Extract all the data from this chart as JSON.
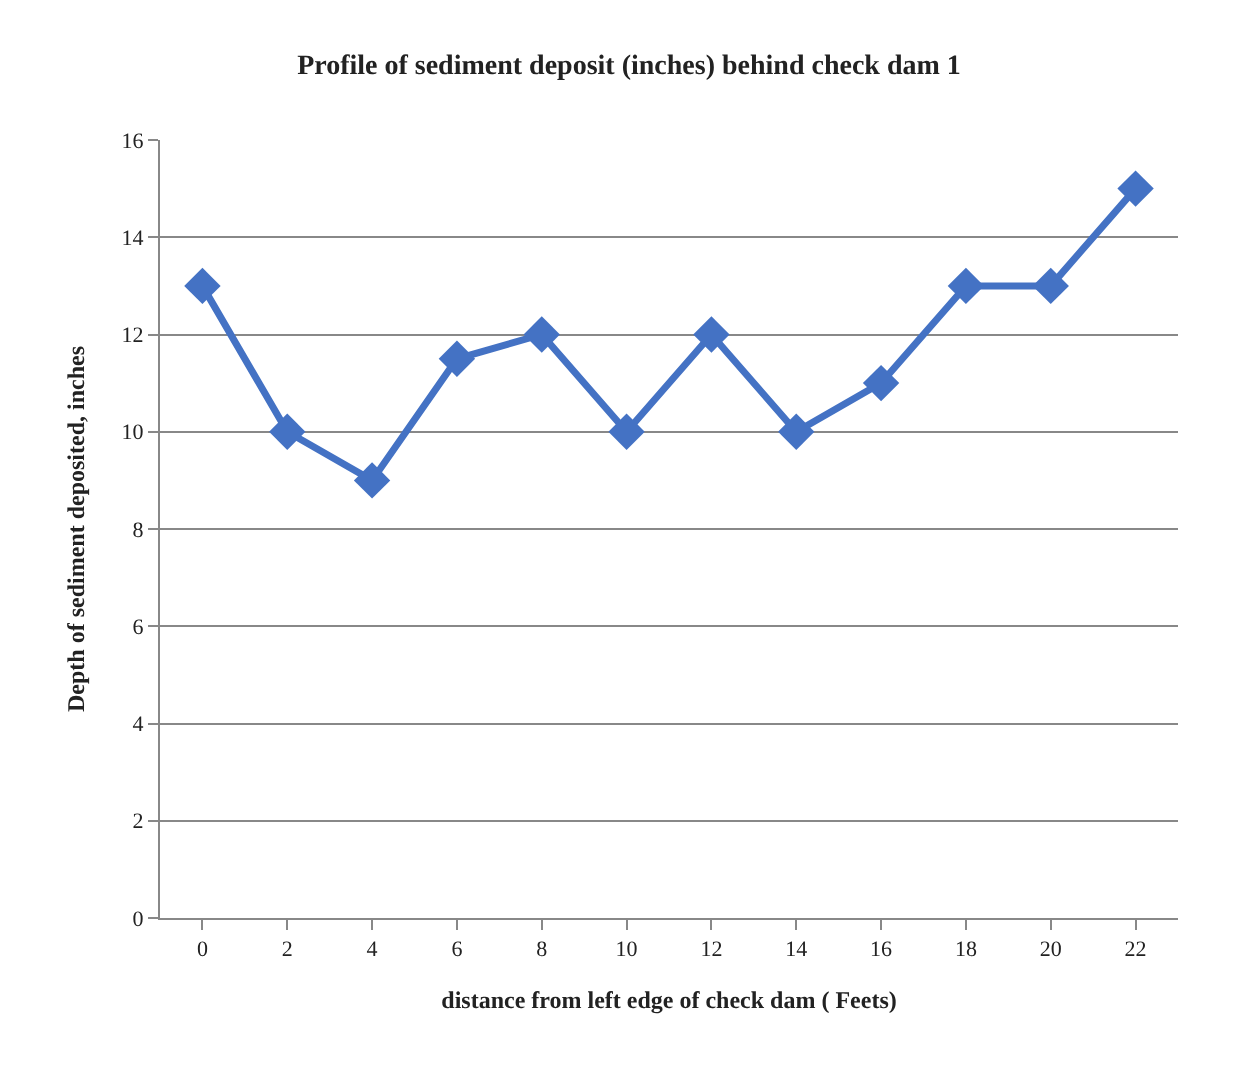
{
  "chart_data": {
    "type": "line",
    "title": "Profile of sediment deposit (inches) behind check dam 1",
    "xlabel": "distance from left edge of check dam ( Feets)",
    "ylabel": "Depth of sediment deposited, inches",
    "categories": [
      "0",
      "2",
      "4",
      "6",
      "8",
      "10",
      "12",
      "14",
      "16",
      "18",
      "20",
      "22"
    ],
    "series": [
      {
        "color": "#4472c4",
        "values": [
          13,
          10,
          9,
          11.5,
          12,
          10,
          12,
          10,
          11,
          13,
          13,
          15
        ]
      }
    ],
    "ylim": [
      0,
      16
    ],
    "yticks": [
      0,
      2,
      4,
      6,
      8,
      10,
      12,
      14,
      16
    ],
    "grid": "y",
    "marker": "diamond",
    "line_style": "solid"
  }
}
